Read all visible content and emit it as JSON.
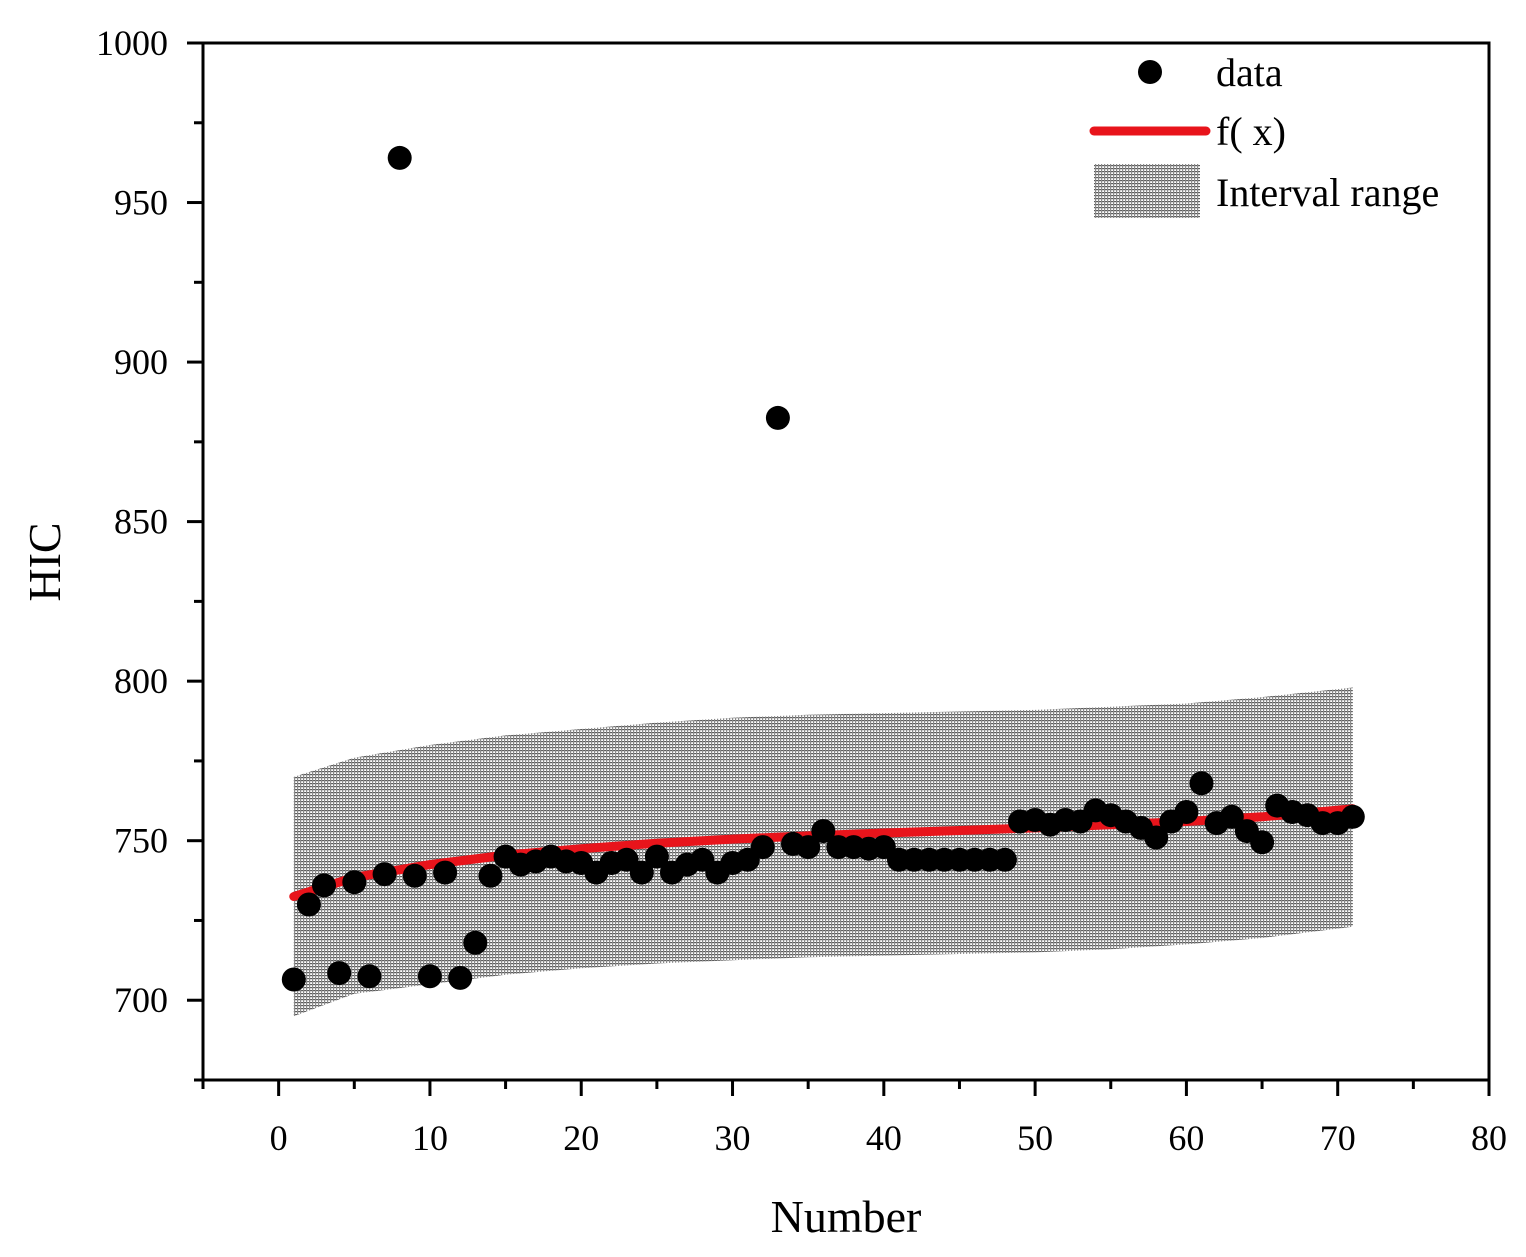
{
  "chart_data": {
    "type": "scatter",
    "xlabel": "Number",
    "ylabel": "HIC",
    "xlim": [
      -5,
      80
    ],
    "ylim": [
      675,
      1000
    ],
    "x_ticks": [
      0,
      10,
      20,
      30,
      40,
      50,
      60,
      70,
      80
    ],
    "y_ticks": [
      700,
      750,
      800,
      850,
      900,
      950,
      1000
    ],
    "x_tick_labels": [
      "0",
      "10",
      "20",
      "30",
      "40",
      "50",
      "60",
      "70",
      "80"
    ],
    "y_tick_labels": [
      "700",
      "750",
      "800",
      "850",
      "900",
      "950",
      "1000"
    ],
    "grid": false,
    "legend_position": "top-right",
    "legend": {
      "data_label": "data",
      "fit_label": "f( x)",
      "band_label": "Interval range"
    },
    "colors": {
      "data": "#000000",
      "fit": "#e8141b",
      "band": "#7a7a7a"
    },
    "series": [
      {
        "name": "data",
        "kind": "scatter",
        "points": [
          [
            1,
            706.5
          ],
          [
            2,
            730
          ],
          [
            3,
            736
          ],
          [
            4,
            708.5
          ],
          [
            5,
            737
          ],
          [
            6,
            707.5
          ],
          [
            7,
            739.5
          ],
          [
            8,
            964
          ],
          [
            9,
            739
          ],
          [
            10,
            707.5
          ],
          [
            11,
            740
          ],
          [
            12,
            707
          ],
          [
            13,
            718
          ],
          [
            14,
            739
          ],
          [
            15,
            745
          ],
          [
            16,
            742.5
          ],
          [
            17,
            743.5
          ],
          [
            18,
            745
          ],
          [
            19,
            743.5
          ],
          [
            20,
            743
          ],
          [
            21,
            740
          ],
          [
            22,
            743
          ],
          [
            23,
            744
          ],
          [
            24,
            740
          ],
          [
            25,
            745
          ],
          [
            26,
            740
          ],
          [
            27,
            742.5
          ],
          [
            28,
            744
          ],
          [
            29,
            740
          ],
          [
            30,
            743
          ],
          [
            31,
            744
          ],
          [
            32,
            748
          ],
          [
            33,
            882.5
          ],
          [
            34,
            749
          ],
          [
            35,
            748
          ],
          [
            36,
            753
          ],
          [
            37,
            748
          ],
          [
            38,
            748
          ],
          [
            39,
            747.5
          ],
          [
            40,
            748
          ],
          [
            41,
            744
          ],
          [
            42,
            744
          ],
          [
            43,
            744
          ],
          [
            44,
            744
          ],
          [
            45,
            744
          ],
          [
            46,
            744
          ],
          [
            47,
            744
          ],
          [
            48,
            744
          ],
          [
            49,
            756
          ],
          [
            50,
            756.5
          ],
          [
            51,
            755
          ],
          [
            52,
            756.5
          ],
          [
            53,
            756
          ],
          [
            54,
            759.5
          ],
          [
            55,
            758
          ],
          [
            56,
            756
          ],
          [
            57,
            754
          ],
          [
            58,
            751
          ],
          [
            59,
            756
          ],
          [
            60,
            759
          ],
          [
            61,
            768
          ],
          [
            62,
            755.5
          ],
          [
            63,
            757.5
          ],
          [
            64,
            753
          ],
          [
            65,
            749.5
          ],
          [
            66,
            761
          ],
          [
            67,
            759
          ],
          [
            68,
            758
          ],
          [
            69,
            755.5
          ],
          [
            70,
            755.5
          ],
          [
            71,
            757.5
          ]
        ]
      },
      {
        "name": "f( x)",
        "kind": "line",
        "points": [
          [
            1,
            732.5
          ],
          [
            5,
            738.5
          ],
          [
            10,
            742.5
          ],
          [
            15,
            745.5
          ],
          [
            20,
            747.5
          ],
          [
            25,
            749.2
          ],
          [
            30,
            750.5
          ],
          [
            35,
            751.5
          ],
          [
            40,
            752.4
          ],
          [
            45,
            753.2
          ],
          [
            50,
            754.0
          ],
          [
            55,
            755.0
          ],
          [
            60,
            756.0
          ],
          [
            65,
            757.5
          ],
          [
            71,
            760.0
          ]
        ]
      },
      {
        "name": "Interval range",
        "kind": "band",
        "points": [
          [
            1,
            695,
            770
          ],
          [
            5,
            702,
            776
          ],
          [
            10,
            705,
            780
          ],
          [
            15,
            708,
            783
          ],
          [
            20,
            710,
            785
          ],
          [
            25,
            711.5,
            787
          ],
          [
            30,
            712.5,
            788.5
          ],
          [
            35,
            713.5,
            789.5
          ],
          [
            40,
            714,
            790
          ],
          [
            45,
            714.5,
            790.5
          ],
          [
            50,
            715,
            791
          ],
          [
            55,
            716,
            792
          ],
          [
            60,
            717.5,
            793
          ],
          [
            65,
            719.5,
            795
          ],
          [
            71,
            723,
            798
          ]
        ]
      }
    ]
  }
}
